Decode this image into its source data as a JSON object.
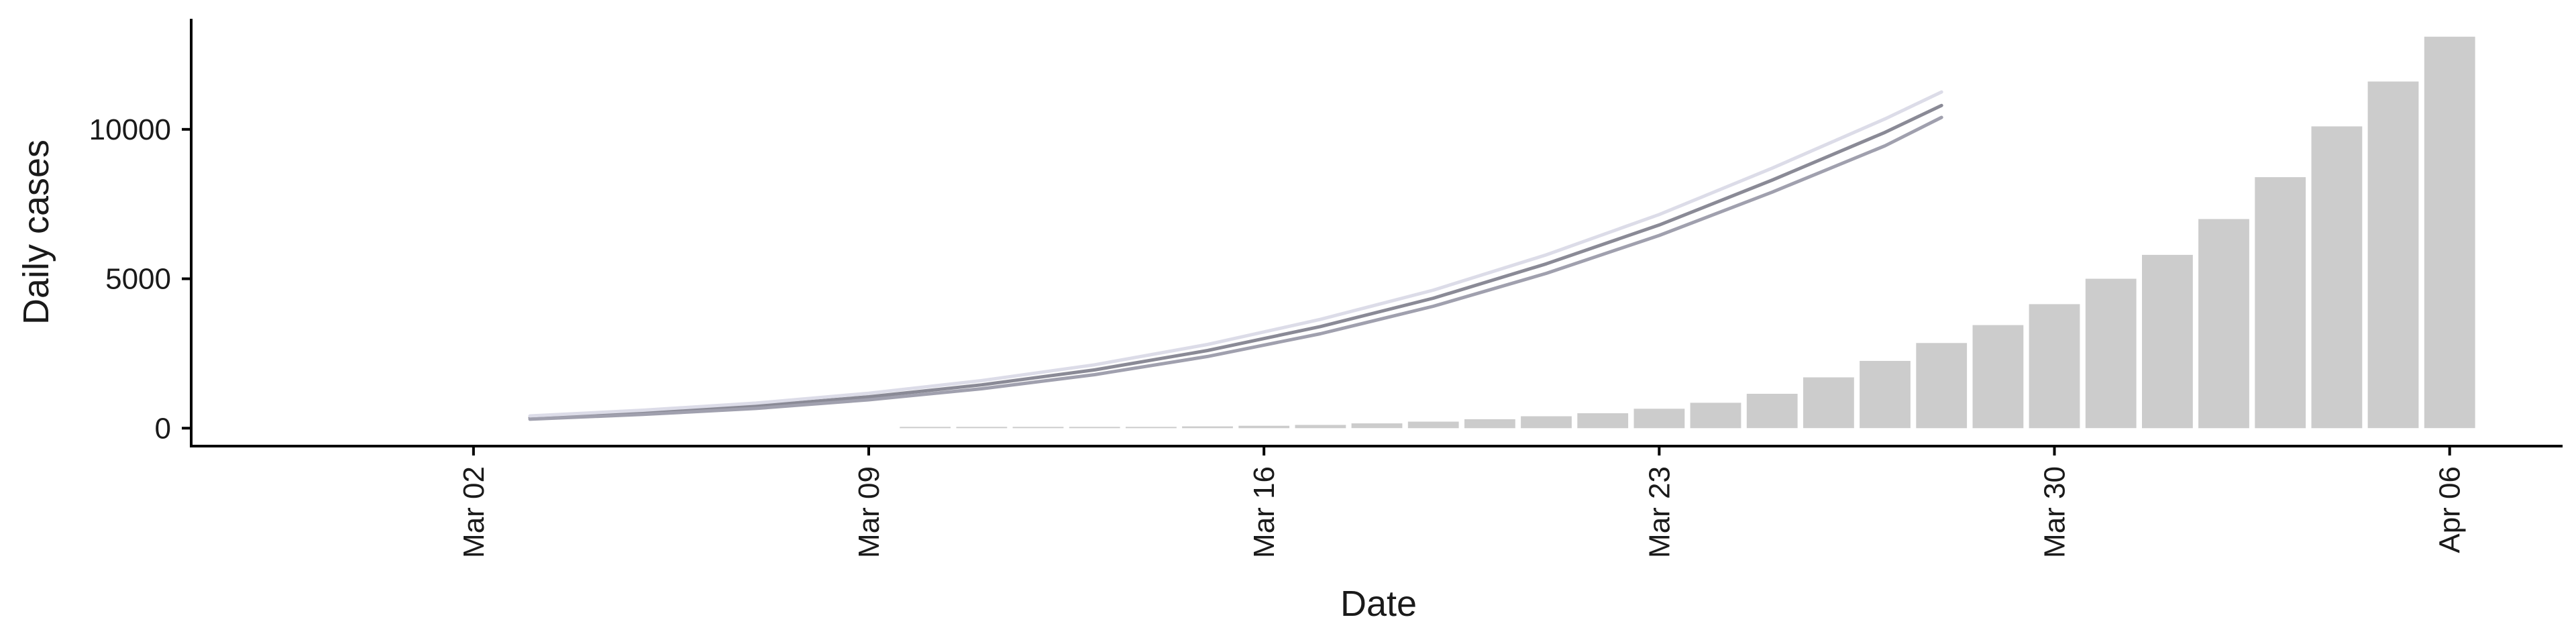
{
  "chart_data": {
    "type": "bar",
    "title": "",
    "xlabel": "Date",
    "ylabel": "Daily cases",
    "x_ticks": [
      {
        "date": "2020-03-02",
        "label": "Mar 02"
      },
      {
        "date": "2020-03-09",
        "label": "Mar 09"
      },
      {
        "date": "2020-03-16",
        "label": "Mar 16"
      },
      {
        "date": "2020-03-23",
        "label": "Mar 23"
      },
      {
        "date": "2020-03-30",
        "label": "Mar 30"
      },
      {
        "date": "2020-04-06",
        "label": "Apr 06"
      }
    ],
    "y_ticks": [
      0,
      5000,
      10000
    ],
    "xlim": [
      "2020-02-26",
      "2020-04-08"
    ],
    "ylim": [
      -600,
      13700
    ],
    "grid": false,
    "bar_color": "#cccccc",
    "line_colors": [
      "#8a8a96",
      "#dcdce8",
      "#a0a0ae"
    ],
    "bars": {
      "dates": [
        "2020-03-10",
        "2020-03-11",
        "2020-03-12",
        "2020-03-13",
        "2020-03-14",
        "2020-03-15",
        "2020-03-16",
        "2020-03-17",
        "2020-03-18",
        "2020-03-19",
        "2020-03-20",
        "2020-03-21",
        "2020-03-22",
        "2020-03-23",
        "2020-03-24",
        "2020-03-25",
        "2020-03-26",
        "2020-03-27",
        "2020-03-28",
        "2020-03-29",
        "2020-03-30",
        "2020-03-31",
        "2020-04-01",
        "2020-04-02",
        "2020-04-03",
        "2020-04-04",
        "2020-04-05",
        "2020-04-06"
      ],
      "values": [
        10,
        15,
        20,
        30,
        40,
        60,
        80,
        110,
        160,
        220,
        300,
        400,
        500,
        650,
        850,
        1150,
        1700,
        2250,
        2850,
        3450,
        4150,
        5000,
        5800,
        7000,
        8400,
        10100,
        11600,
        13100
      ]
    },
    "series": [
      {
        "dates": [
          "2020-03-03",
          "2020-03-05",
          "2020-03-07",
          "2020-03-09",
          "2020-03-11",
          "2020-03-13",
          "2020-03-15",
          "2020-03-17",
          "2020-03-19",
          "2020-03-21",
          "2020-03-23",
          "2020-03-25",
          "2020-03-27",
          "2020-03-28"
        ],
        "values": [
          350,
          520,
          740,
          1050,
          1450,
          1950,
          2600,
          3400,
          4350,
          5500,
          6800,
          8300,
          9900,
          10800
        ]
      },
      {
        "dates": [
          "2020-03-03",
          "2020-03-05",
          "2020-03-07",
          "2020-03-09",
          "2020-03-11",
          "2020-03-13",
          "2020-03-15",
          "2020-03-17",
          "2020-03-19",
          "2020-03-21",
          "2020-03-23",
          "2020-03-25",
          "2020-03-27",
          "2020-03-28"
        ],
        "values": [
          410,
          600,
          840,
          1170,
          1590,
          2120,
          2800,
          3640,
          4620,
          5800,
          7150,
          8700,
          10350,
          11250
        ]
      },
      {
        "dates": [
          "2020-03-03",
          "2020-03-05",
          "2020-03-07",
          "2020-03-09",
          "2020-03-11",
          "2020-03-13",
          "2020-03-15",
          "2020-03-17",
          "2020-03-19",
          "2020-03-21",
          "2020-03-23",
          "2020-03-25",
          "2020-03-27",
          "2020-03-28"
        ],
        "values": [
          300,
          460,
          660,
          950,
          1320,
          1790,
          2400,
          3160,
          4080,
          5180,
          6450,
          7900,
          9450,
          10400
        ]
      }
    ]
  }
}
